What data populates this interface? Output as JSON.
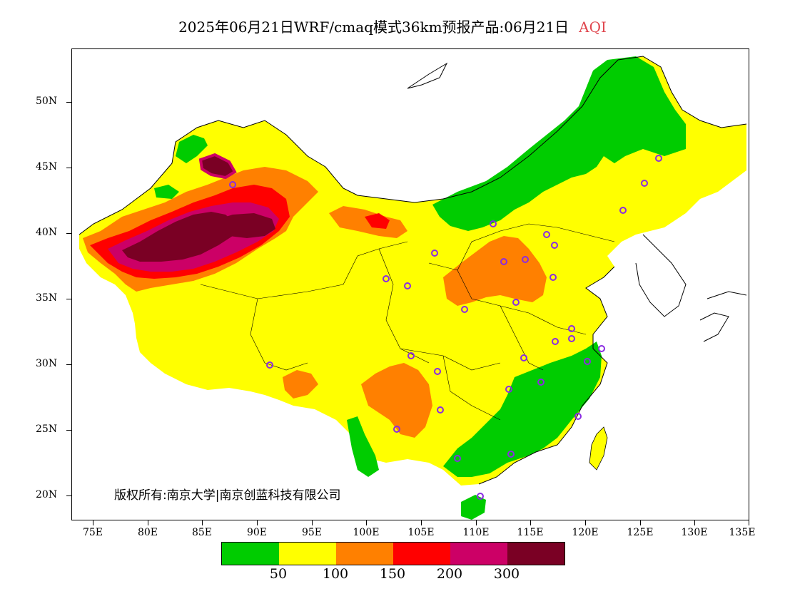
{
  "title": {
    "main": "2025年06月21日WRF/cmaq模式36km预报产品:06月21日",
    "variable": "AQI"
  },
  "axes": {
    "lat_labels": [
      "50N",
      "45N",
      "40N",
      "35N",
      "30N",
      "25N",
      "20N"
    ],
    "lon_labels": [
      "75E",
      "80E",
      "85E",
      "90E",
      "95E",
      "100E",
      "105E",
      "110E",
      "115E",
      "120E",
      "125E",
      "130E",
      "135E"
    ]
  },
  "copyright": "版权所有:南京大学|南京创蓝科技有限公司",
  "legend": {
    "colors": [
      "#00cc00",
      "#ffff00",
      "#ff8000",
      "#ff0000",
      "#cc0066",
      "#7a0024"
    ],
    "labels": [
      "50",
      "100",
      "150",
      "200",
      "300"
    ]
  },
  "colors": {
    "good": "#00cc00",
    "moderate": "#ffff00",
    "sensitive": "#ff8000",
    "unhealthy": "#ff0000",
    "very_unhealthy": "#cc0066",
    "hazardous": "#7a0024",
    "station_marker": "#8a2be2"
  }
}
